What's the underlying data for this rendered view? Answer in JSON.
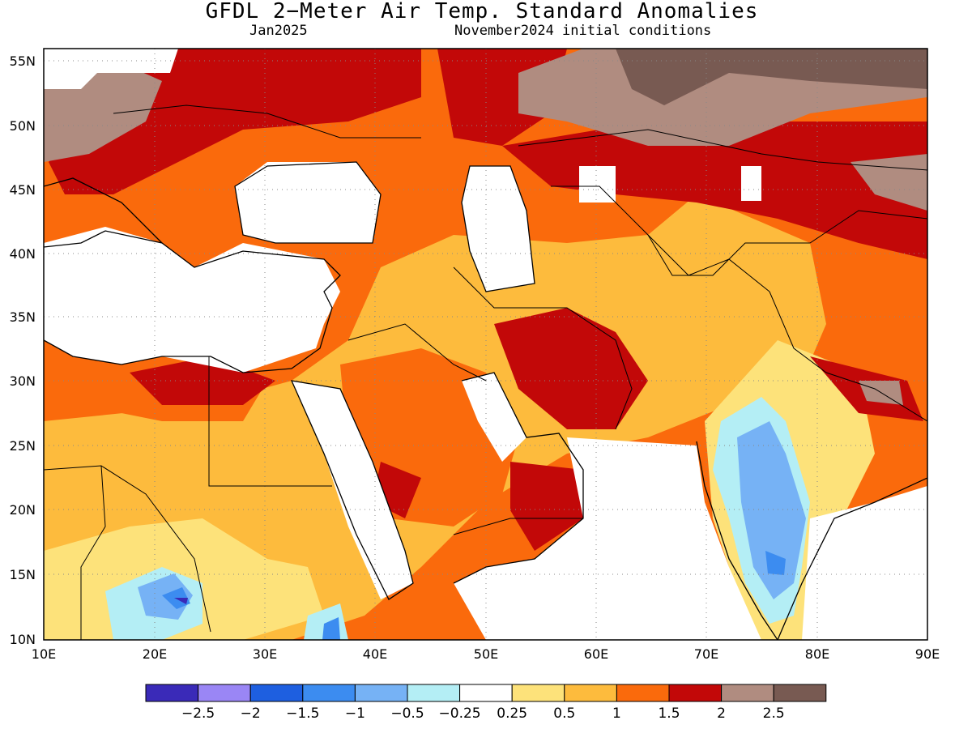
{
  "title": "GFDL 2−Meter Air Temp. Standard Anomalies",
  "subtitle_left": "Jan2025",
  "subtitle_right": "November2024 initial conditions",
  "lat_labels": [
    "10N",
    "15N",
    "20N",
    "25N",
    "30N",
    "35N",
    "40N",
    "45N",
    "50N",
    "55N"
  ],
  "lon_labels": [
    "10E",
    "20E",
    "30E",
    "40E",
    "50E",
    "60E",
    "70E",
    "80E",
    "90E"
  ],
  "legend": {
    "colors": [
      "#3a2ab8",
      "#9a86f5",
      "#1e5fe0",
      "#3c8cf0",
      "#76b2f5",
      "#b4eef5",
      "#ffffff",
      "#fde27a",
      "#fdbb3d",
      "#fa6a0c",
      "#c20808",
      "#b08c80",
      "#785a52"
    ],
    "labels": [
      "−2.5",
      "−2",
      "−1.5",
      "−1",
      "−0.5",
      "−0.25",
      "0.25",
      "0.5",
      "1",
      "1.5",
      "2",
      "2.5"
    ]
  }
}
